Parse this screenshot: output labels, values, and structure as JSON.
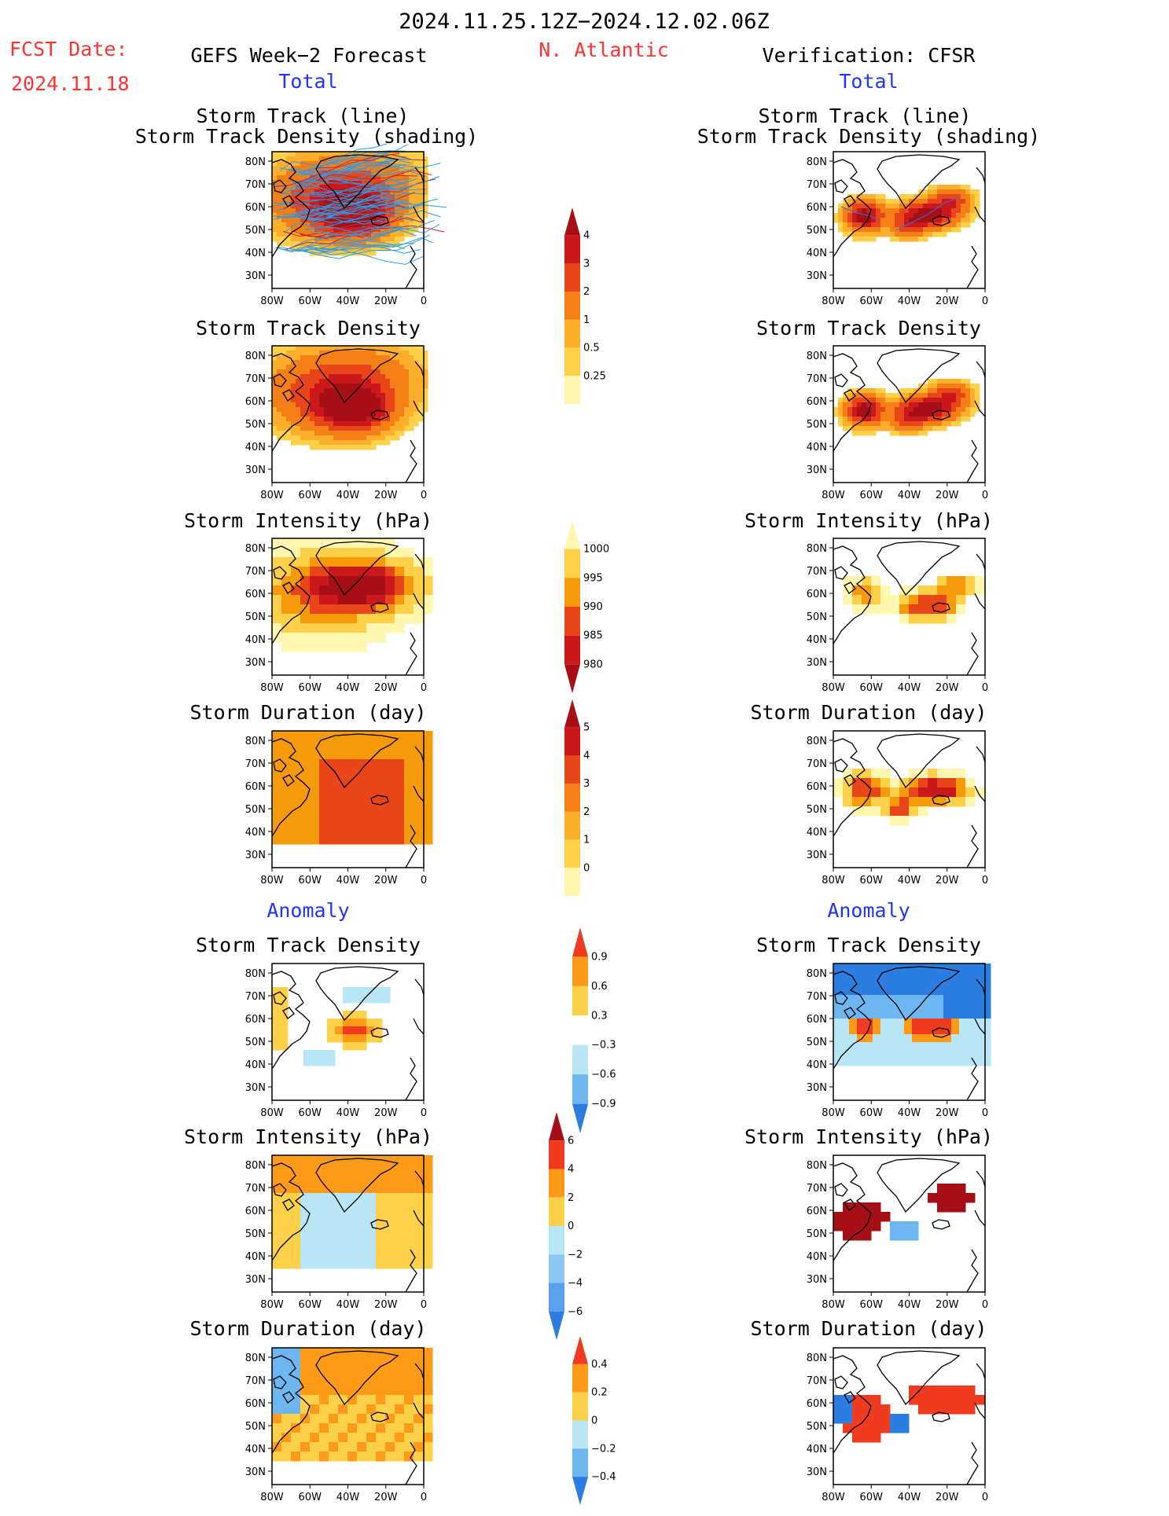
{
  "header": {
    "date_range": "2024.11.25.12Z−2024.12.02.06Z",
    "fcst_label": "FCST Date:",
    "fcst_date": "2024.11.18",
    "left_title": "GEFS Week−2 Forecast",
    "region": "N. Atlantic",
    "right_title": "Verification: CFSR",
    "total_left": "Total",
    "total_right": "Total",
    "anomaly_left": "Anomaly",
    "anomaly_right": "Anomaly"
  },
  "titles": {
    "track_line": "Storm Track (line)",
    "track_density_shading": "Storm Track Density (shading)",
    "track_density": "Storm Track Density",
    "intensity": "Storm Intensity (hPa)",
    "duration": "Storm Duration (day)"
  },
  "axes": {
    "x_ticks": [
      "80W",
      "60W",
      "40W",
      "20W",
      "0"
    ],
    "y_ticks": [
      "80N",
      "70N",
      "60N",
      "50N",
      "40N",
      "30N"
    ]
  },
  "colorbars": {
    "density_total": {
      "labels": [
        "4",
        "3",
        "2",
        "1",
        "0.5",
        "0.25"
      ],
      "colors": [
        "#a50f15",
        "#cb181d",
        "#e8461a",
        "#f57f17",
        "#fdae2b",
        "#fdd049",
        "#fff7b0"
      ]
    },
    "intensity_total": {
      "labels": [
        "1000",
        "995",
        "990",
        "985",
        "980"
      ],
      "colors": [
        "#fff7b0",
        "#fdd049",
        "#f59a0b",
        "#e8461a",
        "#cb181d",
        "#a50f15"
      ]
    },
    "duration_total": {
      "labels": [
        "5",
        "4",
        "3",
        "2",
        "1",
        "0"
      ],
      "colors": [
        "#a50f15",
        "#cb181d",
        "#e8461a",
        "#f57f17",
        "#fdae2b",
        "#fdd049",
        "#fff7b0"
      ]
    },
    "density_anom": {
      "labels": [
        "0.9",
        "0.6",
        "0.3",
        "−0.3",
        "−0.6",
        "−0.9"
      ],
      "colors": [
        "#f03b20",
        "#fd9a18",
        "#fdd049",
        "#ffffff",
        "#b8e6f5",
        "#6eb6ef",
        "#2b7de0"
      ]
    },
    "intensity_anom": {
      "labels": [
        "6",
        "4",
        "2",
        "0",
        "−2",
        "−4",
        "−6"
      ],
      "colors": [
        "#a50f15",
        "#f03b20",
        "#fd9a18",
        "#fdd049",
        "#b8e6f5",
        "#8cc6f2",
        "#5aa0ee",
        "#2b7de0"
      ]
    },
    "duration_anom": {
      "labels": [
        "0.4",
        "0.2",
        "0",
        "−0.2",
        "−0.4"
      ],
      "colors": [
        "#f03b20",
        "#fd9a18",
        "#fdd049",
        "#b8e6f5",
        "#6eb6ef",
        "#2b7de0"
      ]
    }
  },
  "chart_data": [
    {
      "type": "heatmap",
      "panel": "GEFS track + density",
      "title": "Storm Track (line) / Storm Track Density (shading)",
      "xlim": [
        "80W",
        "0"
      ],
      "ylim": [
        "25N",
        "85N"
      ],
      "grid": false,
      "pattern": "broad density 1–4 across 35N–80N with dense ensemble tracks"
    },
    {
      "type": "heatmap",
      "panel": "CFSR track + density",
      "title": "Storm Track (line) / Storm Track Density (shading)",
      "pattern": "two maxima: near 50N 65W and elongated 45N–60N 15W–45W"
    },
    {
      "type": "heatmap",
      "panel": "GEFS density",
      "title": "Storm Track Density",
      "pattern": "maximum >4 near 50N 35W"
    },
    {
      "type": "heatmap",
      "panel": "CFSR density",
      "title": "Storm Track Density",
      "pattern": "two maxima: near 50N 65W and 50N 30W"
    },
    {
      "type": "heatmap",
      "panel": "GEFS intensity",
      "title": "Storm Intensity (hPa)",
      "pattern": "deepest (<980) near 60N 20W–40W"
    },
    {
      "type": "heatmap",
      "panel": "CFSR intensity",
      "title": "Storm Intensity (hPa)",
      "pattern": "985–990 near 50N 35W; weaker near coast"
    },
    {
      "type": "heatmap",
      "panel": "GEFS duration",
      "title": "Storm Duration (day)",
      "pattern": "mostly 2–3 days"
    },
    {
      "type": "heatmap",
      "panel": "CFSR duration",
      "title": "Storm Duration (day)",
      "pattern": "3–4 days in NE Atlantic"
    },
    {
      "type": "heatmap",
      "panel": "GEFS density anomaly",
      "title": "Storm Track Density",
      "pattern": "positive 0.9 near 50N 35W; weak negative surrounding"
    },
    {
      "type": "heatmap",
      "panel": "CFSR density anomaly",
      "title": "Storm Track Density",
      "pattern": "strong negative north; positive bands near 50N"
    },
    {
      "type": "heatmap",
      "panel": "GEFS intensity anomaly",
      "title": "Storm Intensity (hPa)",
      "pattern": "weak positive north, weak negative 45N"
    },
    {
      "type": "heatmap",
      "panel": "CFSR intensity anomaly",
      "title": "Storm Intensity (hPa)",
      "pattern": "strong positive >6 in two lobes"
    },
    {
      "type": "heatmap",
      "panel": "GEFS duration anomaly",
      "title": "Storm Duration (day)",
      "pattern": "mixed weak positive"
    },
    {
      "type": "heatmap",
      "panel": "CFSR duration anomaly",
      "title": "Storm Duration (day)",
      "pattern": "positive 0.4 in two lobes, negative near 50N 70W and 40W"
    }
  ]
}
